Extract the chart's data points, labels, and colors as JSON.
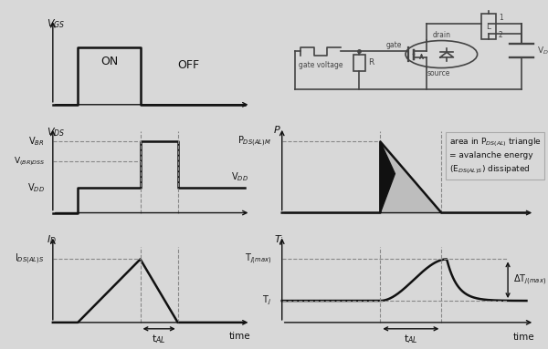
{
  "bg_color": "#d8d8d8",
  "line_color": "#111111",
  "dashed_color": "#888888",
  "fill_dark": "#111111",
  "fill_light": "#bbbbbb",
  "circuit_color": "#444444",
  "vgs_ylabel": "V$_{GS}$",
  "vds_ylabel": "V$_{DS}$",
  "id_ylabel": "I$_{D}$",
  "p_ylabel": "P",
  "tj_ylabel": "T$_j$",
  "xlabel_time": "time",
  "vgs_on_label": "ON",
  "vgs_off_label": "OFF",
  "vds_vbr_label": "V$_{BR}$",
  "vds_vbrdss_label": "V$_{(BR)DSS}$",
  "vds_vdd_label": "V$_{DD}$",
  "id_ids_label": "I$_{DS(AL)S}$",
  "p_pdsm_label": "P$_{DS(AL)M}$",
  "p_box_line1": "area in P",
  "p_box_sub": "DS(AL)",
  "p_box_line2": " triangle",
  "p_box_text": "area in P$_{DS(AL)}$ triangle\n= avalanche energy\n(E$_{DS(AL)S}$) dissipated",
  "tj_tjmax_label": "T$_{j(max)}$",
  "tj_tj_label": "T$_j$",
  "tj_dtj_label": "ΔT$_{j(max)}$",
  "tal_label": "t$_{AL}$",
  "gate_voltage_label": "gate voltage",
  "r_label": "R",
  "l_label": "L",
  "drain_label": "drain",
  "gate_label": "gate",
  "source_label": "source",
  "vdd_label": "V$_{DD}$"
}
